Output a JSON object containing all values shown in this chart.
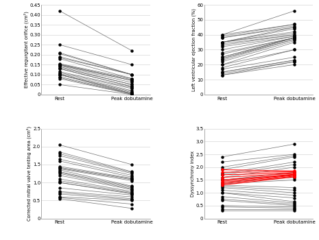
{
  "panel1": {
    "ylabel": "Effective regurgitant orifice (cm²)",
    "ylim": [
      0,
      0.45
    ],
    "yticks": [
      0,
      0.05,
      0.1,
      0.15,
      0.2,
      0.25,
      0.3,
      0.35,
      0.4,
      0.45
    ],
    "ytick_labels": [
      "0",
      "0.05",
      "0.10",
      "0.15",
      "0.20",
      "0.25",
      "0.30",
      "0.35",
      "0.40",
      "0.45"
    ],
    "rest": [
      0.42,
      0.25,
      0.21,
      0.205,
      0.19,
      0.185,
      0.18,
      0.155,
      0.152,
      0.15,
      0.148,
      0.145,
      0.14,
      0.135,
      0.13,
      0.13,
      0.115,
      0.11,
      0.105,
      0.1,
      0.1,
      0.1,
      0.09,
      0.085,
      0.08,
      0.05
    ],
    "peak": [
      0.22,
      0.15,
      0.1,
      0.1,
      0.1,
      0.1,
      0.08,
      0.08,
      0.075,
      0.07,
      0.07,
      0.06,
      0.05,
      0.05,
      0.04,
      0.04,
      0.035,
      0.03,
      0.02,
      0.015,
      0.01,
      0.005,
      0.005,
      0.003,
      0.001,
      0.0
    ]
  },
  "panel2": {
    "ylabel": "Left ventricular ejection fraction (%)",
    "ylim": [
      0,
      60
    ],
    "yticks": [
      0,
      10,
      20,
      30,
      40,
      50,
      60
    ],
    "ytick_labels": [
      "0",
      "10",
      "20",
      "30",
      "40",
      "50",
      "60"
    ],
    "rest": [
      40,
      40,
      39,
      38,
      38,
      35,
      35,
      35,
      35,
      34,
      33,
      32,
      30,
      28,
      27,
      25,
      25,
      24,
      24,
      23,
      22,
      20,
      20,
      18,
      17,
      15,
      15,
      14,
      13,
      13
    ],
    "peak": [
      56,
      47,
      47,
      46,
      45,
      45,
      44,
      42,
      41,
      40,
      40,
      39,
      39,
      38,
      38,
      38,
      38,
      38,
      37,
      37,
      36,
      35,
      30,
      30,
      25,
      23,
      23,
      22,
      22,
      20
    ]
  },
  "panel3": {
    "ylabel": "Corrected mitral valve tenting area (cm²)",
    "ylim": [
      0,
      2.5
    ],
    "yticks": [
      0,
      0.5,
      1.0,
      1.5,
      2.0,
      2.5
    ],
    "ytick_labels": [
      "0",
      "0.5",
      "1.0",
      "1.5",
      "2.0",
      "2.5"
    ],
    "rest": [
      2.05,
      1.85,
      1.8,
      1.75,
      1.65,
      1.6,
      1.45,
      1.42,
      1.4,
      1.38,
      1.35,
      1.3,
      1.28,
      1.25,
      1.2,
      1.1,
      1.05,
      1.0,
      1.0,
      0.85,
      0.75,
      0.72,
      0.68,
      0.6,
      0.58,
      0.55
    ],
    "peak": [
      1.5,
      1.3,
      1.28,
      1.25,
      1.2,
      1.15,
      1.12,
      1.1,
      1.08,
      1.05,
      0.9,
      0.88,
      0.85,
      0.82,
      0.8,
      0.75,
      0.72,
      0.7,
      0.68,
      0.65,
      0.6,
      0.55,
      0.52,
      0.5,
      0.4,
      0.28
    ]
  },
  "panel4": {
    "ylabel": "Dyssynchrony index",
    "ylim": [
      0,
      3.5
    ],
    "yticks": [
      0,
      0.5,
      1.0,
      1.5,
      2.0,
      2.5,
      3.0,
      3.5
    ],
    "ytick_labels": [
      "0",
      "0.5",
      "1.0",
      "1.5",
      "2.0",
      "2.5",
      "3.0",
      "3.5"
    ],
    "rest_gray": [
      2.4,
      2.2,
      2.0,
      1.9,
      1.75,
      1.7,
      1.6,
      1.5,
      1.5,
      1.4,
      1.35,
      1.3,
      1.25,
      1.2,
      1.1,
      1.0,
      1.0,
      0.85,
      0.75,
      0.7,
      0.5,
      0.45,
      0.35,
      0.3
    ],
    "peak_gray": [
      2.9,
      2.5,
      2.45,
      2.4,
      2.2,
      2.1,
      2.0,
      1.8,
      1.7,
      1.6,
      1.5,
      1.2,
      1.1,
      1.0,
      0.9,
      0.8,
      0.65,
      0.6,
      0.55,
      0.5,
      0.45,
      0.4,
      0.35,
      0.3
    ],
    "rest_red": [
      1.9,
      1.8,
      1.7,
      1.6,
      1.5,
      1.45,
      1.4,
      1.35,
      1.3
    ],
    "peak_red": [
      1.85,
      1.82,
      1.78,
      1.75,
      1.72,
      1.7,
      1.68,
      1.65,
      1.62
    ]
  }
}
